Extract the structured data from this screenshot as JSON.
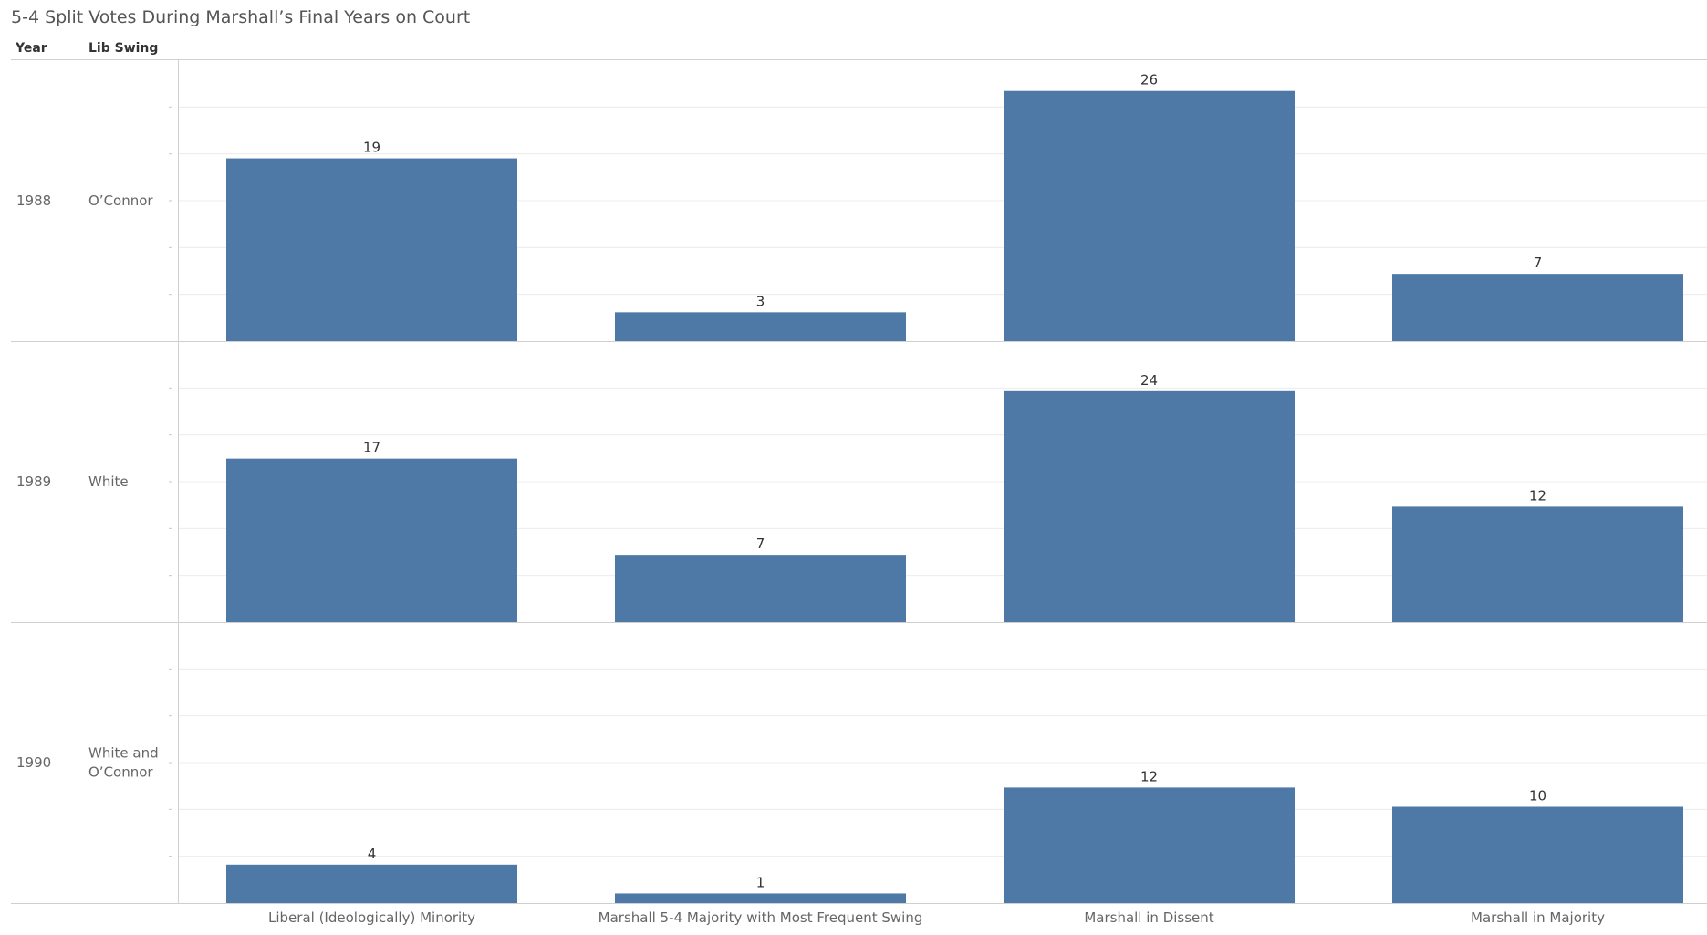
{
  "chart_data": {
    "type": "bar",
    "title": "5-4 Split Votes During Marshall’s Final Years on Court",
    "row_headers": [
      "Year",
      "Lib Swing"
    ],
    "categories": [
      "Liberal (Ideologically) Minority",
      "Marshall 5-4 Majority with Most Frequent Swing",
      "Marshall in Dissent",
      "Marshall in Majority"
    ],
    "panels": [
      {
        "year": "1988",
        "swing": [
          "O’Connor"
        ],
        "values": [
          19,
          3,
          26,
          7
        ]
      },
      {
        "year": "1989",
        "swing": [
          "White"
        ],
        "values": [
          17,
          7,
          24,
          12
        ]
      },
      {
        "year": "1990",
        "swing": [
          "White and",
          "O’Connor"
        ],
        "values": [
          4,
          1,
          12,
          10
        ]
      }
    ],
    "ylim": [
      0,
      29
    ],
    "bar_color": "#4e79a7",
    "grid": true,
    "legend": "none"
  }
}
